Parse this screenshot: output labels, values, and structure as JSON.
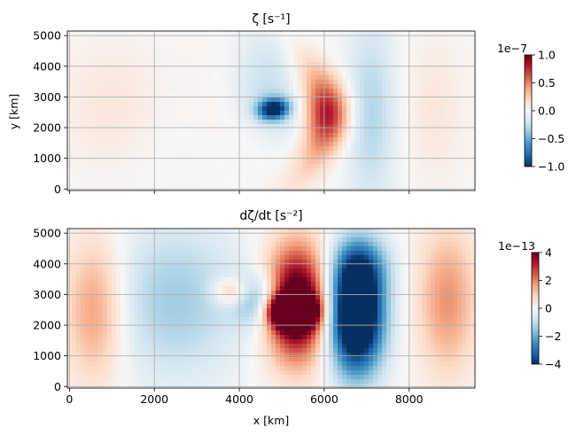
{
  "colors": {
    "grid": "#b0b0b0",
    "cmap": [
      "#053061",
      "#2166ac",
      "#4393c3",
      "#92c5de",
      "#d1e5f0",
      "#f7f7f7",
      "#fddbc7",
      "#f4a582",
      "#d6604d",
      "#b2182b",
      "#67001f"
    ]
  },
  "chart_data": [
    {
      "type": "heatmap",
      "title": "ζ [s⁻¹]",
      "xlabel": "",
      "ylabel": "y [km]",
      "xlim": [
        -50,
        9550
      ],
      "ylim": [
        -50,
        5150
      ],
      "x_ticks": [
        0,
        2000,
        4000,
        6000,
        8000
      ],
      "x_tick_labels": [
        "",
        "",
        "",
        "",
        ""
      ],
      "y_ticks": [
        0,
        1000,
        2000,
        3000,
        4000,
        5000
      ],
      "y_tick_labels": [
        "0",
        "1000",
        "2000",
        "3000",
        "4000",
        "5000"
      ],
      "grid": true,
      "colorbar": {
        "min": -1.0,
        "max": 1.0,
        "ticks": [
          -1.0,
          -0.5,
          0.0,
          0.5,
          1.0
        ],
        "tick_labels": [
          "−1.0",
          "−0.5",
          "0.0",
          "0.5",
          "1.0"
        ],
        "offset_label": "1e−7"
      },
      "features": [
        {
          "kind": "blob",
          "x": 4800,
          "y": 2600,
          "sx": 260,
          "sy": 230,
          "amp": -1.0,
          "tilt": 0.6
        },
        {
          "kind": "blob",
          "x": 4800,
          "y": 2600,
          "sx": 600,
          "sy": 900,
          "amp": -0.2,
          "tilt": 0.6
        },
        {
          "kind": "arc",
          "cx": 6000,
          "cy": 2400,
          "r": 220,
          "width": 600,
          "sy": 1400,
          "amp": 0.55
        },
        {
          "kind": "blob",
          "x": 6150,
          "y": 2450,
          "sx": 350,
          "sy": 700,
          "amp": 0.35,
          "tilt": 0
        },
        {
          "kind": "band",
          "x": 7100,
          "y": 2500,
          "sx": 420,
          "sy": 2200,
          "amp": -0.3
        },
        {
          "kind": "band",
          "x": 4700,
          "y": 4200,
          "sx": 600,
          "sy": 1000,
          "amp": -0.18
        },
        {
          "kind": "band",
          "x": 1000,
          "y": 2700,
          "sx": 900,
          "sy": 1500,
          "amp": 0.12
        },
        {
          "kind": "band",
          "x": 2800,
          "y": 1500,
          "sx": 900,
          "sy": 1400,
          "amp": -0.05
        },
        {
          "kind": "band",
          "x": 8600,
          "y": 2600,
          "sx": 500,
          "sy": 1700,
          "amp": 0.12
        },
        {
          "kind": "band",
          "x": 3600,
          "y": 2700,
          "sx": 800,
          "sy": 1500,
          "amp": 0.07
        }
      ]
    },
    {
      "type": "heatmap",
      "title": "dζ/dt [s⁻²]",
      "xlabel": "x [km]",
      "ylabel": "",
      "xlim": [
        -50,
        9550
      ],
      "ylim": [
        -50,
        5150
      ],
      "x_ticks": [
        0,
        2000,
        4000,
        6000,
        8000
      ],
      "x_tick_labels": [
        "0",
        "2000",
        "4000",
        "6000",
        "8000"
      ],
      "y_ticks": [
        0,
        1000,
        2000,
        3000,
        4000,
        5000
      ],
      "y_tick_labels": [
        "0",
        "1000",
        "2000",
        "3000",
        "4000",
        "5000"
      ],
      "grid": true,
      "colorbar": {
        "min": -4,
        "max": 4,
        "ticks": [
          -4,
          -2,
          0,
          2,
          4
        ],
        "tick_labels": [
          "−4",
          "−2",
          "0",
          "2",
          "4"
        ],
        "offset_label": "1e−13"
      },
      "features": [
        {
          "kind": "blob",
          "x": 5250,
          "y": 2450,
          "sx": 350,
          "sy": 350,
          "amp": 2.0,
          "tilt": 0
        },
        {
          "kind": "band",
          "x": 5350,
          "y": 2700,
          "sx": 500,
          "sy": 1300,
          "amp": 1.3
        },
        {
          "kind": "band",
          "x": 6750,
          "y": 2300,
          "sx": 450,
          "sy": 1300,
          "amp": -1.6
        },
        {
          "kind": "band",
          "x": 6850,
          "y": 3900,
          "sx": 450,
          "sy": 700,
          "amp": -0.5
        },
        {
          "kind": "band",
          "x": 4500,
          "y": 2800,
          "sx": 400,
          "sy": 600,
          "amp": -0.5
        },
        {
          "kind": "band",
          "x": 2500,
          "y": 2800,
          "sx": 1100,
          "sy": 1800,
          "amp": -0.35
        },
        {
          "kind": "band",
          "x": 600,
          "y": 2500,
          "sx": 500,
          "sy": 1700,
          "amp": 0.45
        },
        {
          "kind": "band",
          "x": 8900,
          "y": 2800,
          "sx": 500,
          "sy": 1700,
          "amp": 0.45
        },
        {
          "kind": "band",
          "x": 3800,
          "y": 3100,
          "sx": 300,
          "sy": 300,
          "amp": 0.4
        }
      ]
    }
  ]
}
